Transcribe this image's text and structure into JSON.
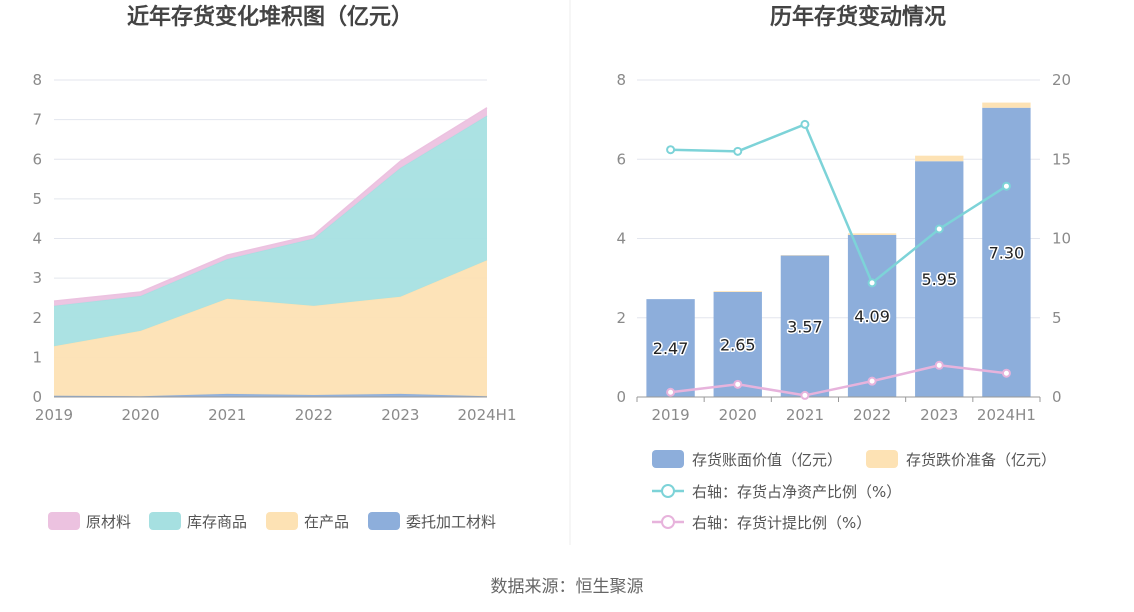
{
  "source": "数据来源：恒生聚源",
  "chart_data": [
    {
      "type": "area",
      "stacked": true,
      "title": "近年存货变化堆积图（亿元）",
      "categories": [
        "2019",
        "2020",
        "2021",
        "2022",
        "2023",
        "2024H1"
      ],
      "ylim": [
        0,
        8
      ],
      "yticks": [
        "0",
        "1",
        "2",
        "3",
        "4",
        "5",
        "6",
        "7",
        "8"
      ],
      "grid": true,
      "legend_position": "bottom",
      "series": [
        {
          "name": "委托加工材料",
          "color": "#8daedb",
          "values": [
            0.03,
            0.02,
            0.08,
            0.05,
            0.08,
            0.02
          ]
        },
        {
          "name": "在产品",
          "color": "#fde2b4",
          "values": [
            1.25,
            1.65,
            2.4,
            2.25,
            2.45,
            3.43
          ]
        },
        {
          "name": "库存商品",
          "color": "#a6e0e1",
          "values": [
            1.02,
            0.88,
            1.0,
            1.7,
            3.25,
            3.65
          ]
        },
        {
          "name": "原材料",
          "color": "#ecc2e0",
          "values": [
            0.12,
            0.1,
            0.1,
            0.09,
            0.17,
            0.2
          ]
        }
      ],
      "legend_order": [
        "原材料",
        "库存商品",
        "在产品",
        "委托加工材料"
      ]
    },
    {
      "type": "bar",
      "stacked": true,
      "title": "历年存货变动情况",
      "categories": [
        "2019",
        "2020",
        "2021",
        "2022",
        "2023",
        "2024H1"
      ],
      "ylim": [
        0,
        8
      ],
      "yticks": [
        "0",
        "2",
        "4",
        "6",
        "8"
      ],
      "y2lim": [
        0,
        20
      ],
      "y2ticks": [
        "0",
        "5",
        "10",
        "15",
        "20"
      ],
      "grid": true,
      "legend_position": "bottom",
      "bar_series": [
        {
          "name": "存货账面价值（亿元）",
          "color": "#8daedb",
          "values": [
            2.47,
            2.65,
            3.57,
            4.09,
            5.95,
            7.3
          ],
          "labels": [
            "2.47",
            "2.65",
            "3.57",
            "4.09",
            "5.95",
            "7.30"
          ]
        },
        {
          "name": "存货跌价准备（亿元）",
          "color": "#fde2b4",
          "values": [
            0.0,
            0.02,
            0.01,
            0.04,
            0.14,
            0.13
          ]
        }
      ],
      "line_series": [
        {
          "name": "右轴：存货占净资产比例（%）",
          "color": "#7dd3d8",
          "axis": "right",
          "values": [
            15.6,
            15.5,
            17.2,
            7.2,
            10.6,
            13.3
          ]
        },
        {
          "name": "右轴：存货计提比例（%）",
          "color": "#e7b3dc",
          "axis": "right",
          "values": [
            0.3,
            0.8,
            0.1,
            1.0,
            2.0,
            1.5
          ]
        }
      ]
    }
  ]
}
